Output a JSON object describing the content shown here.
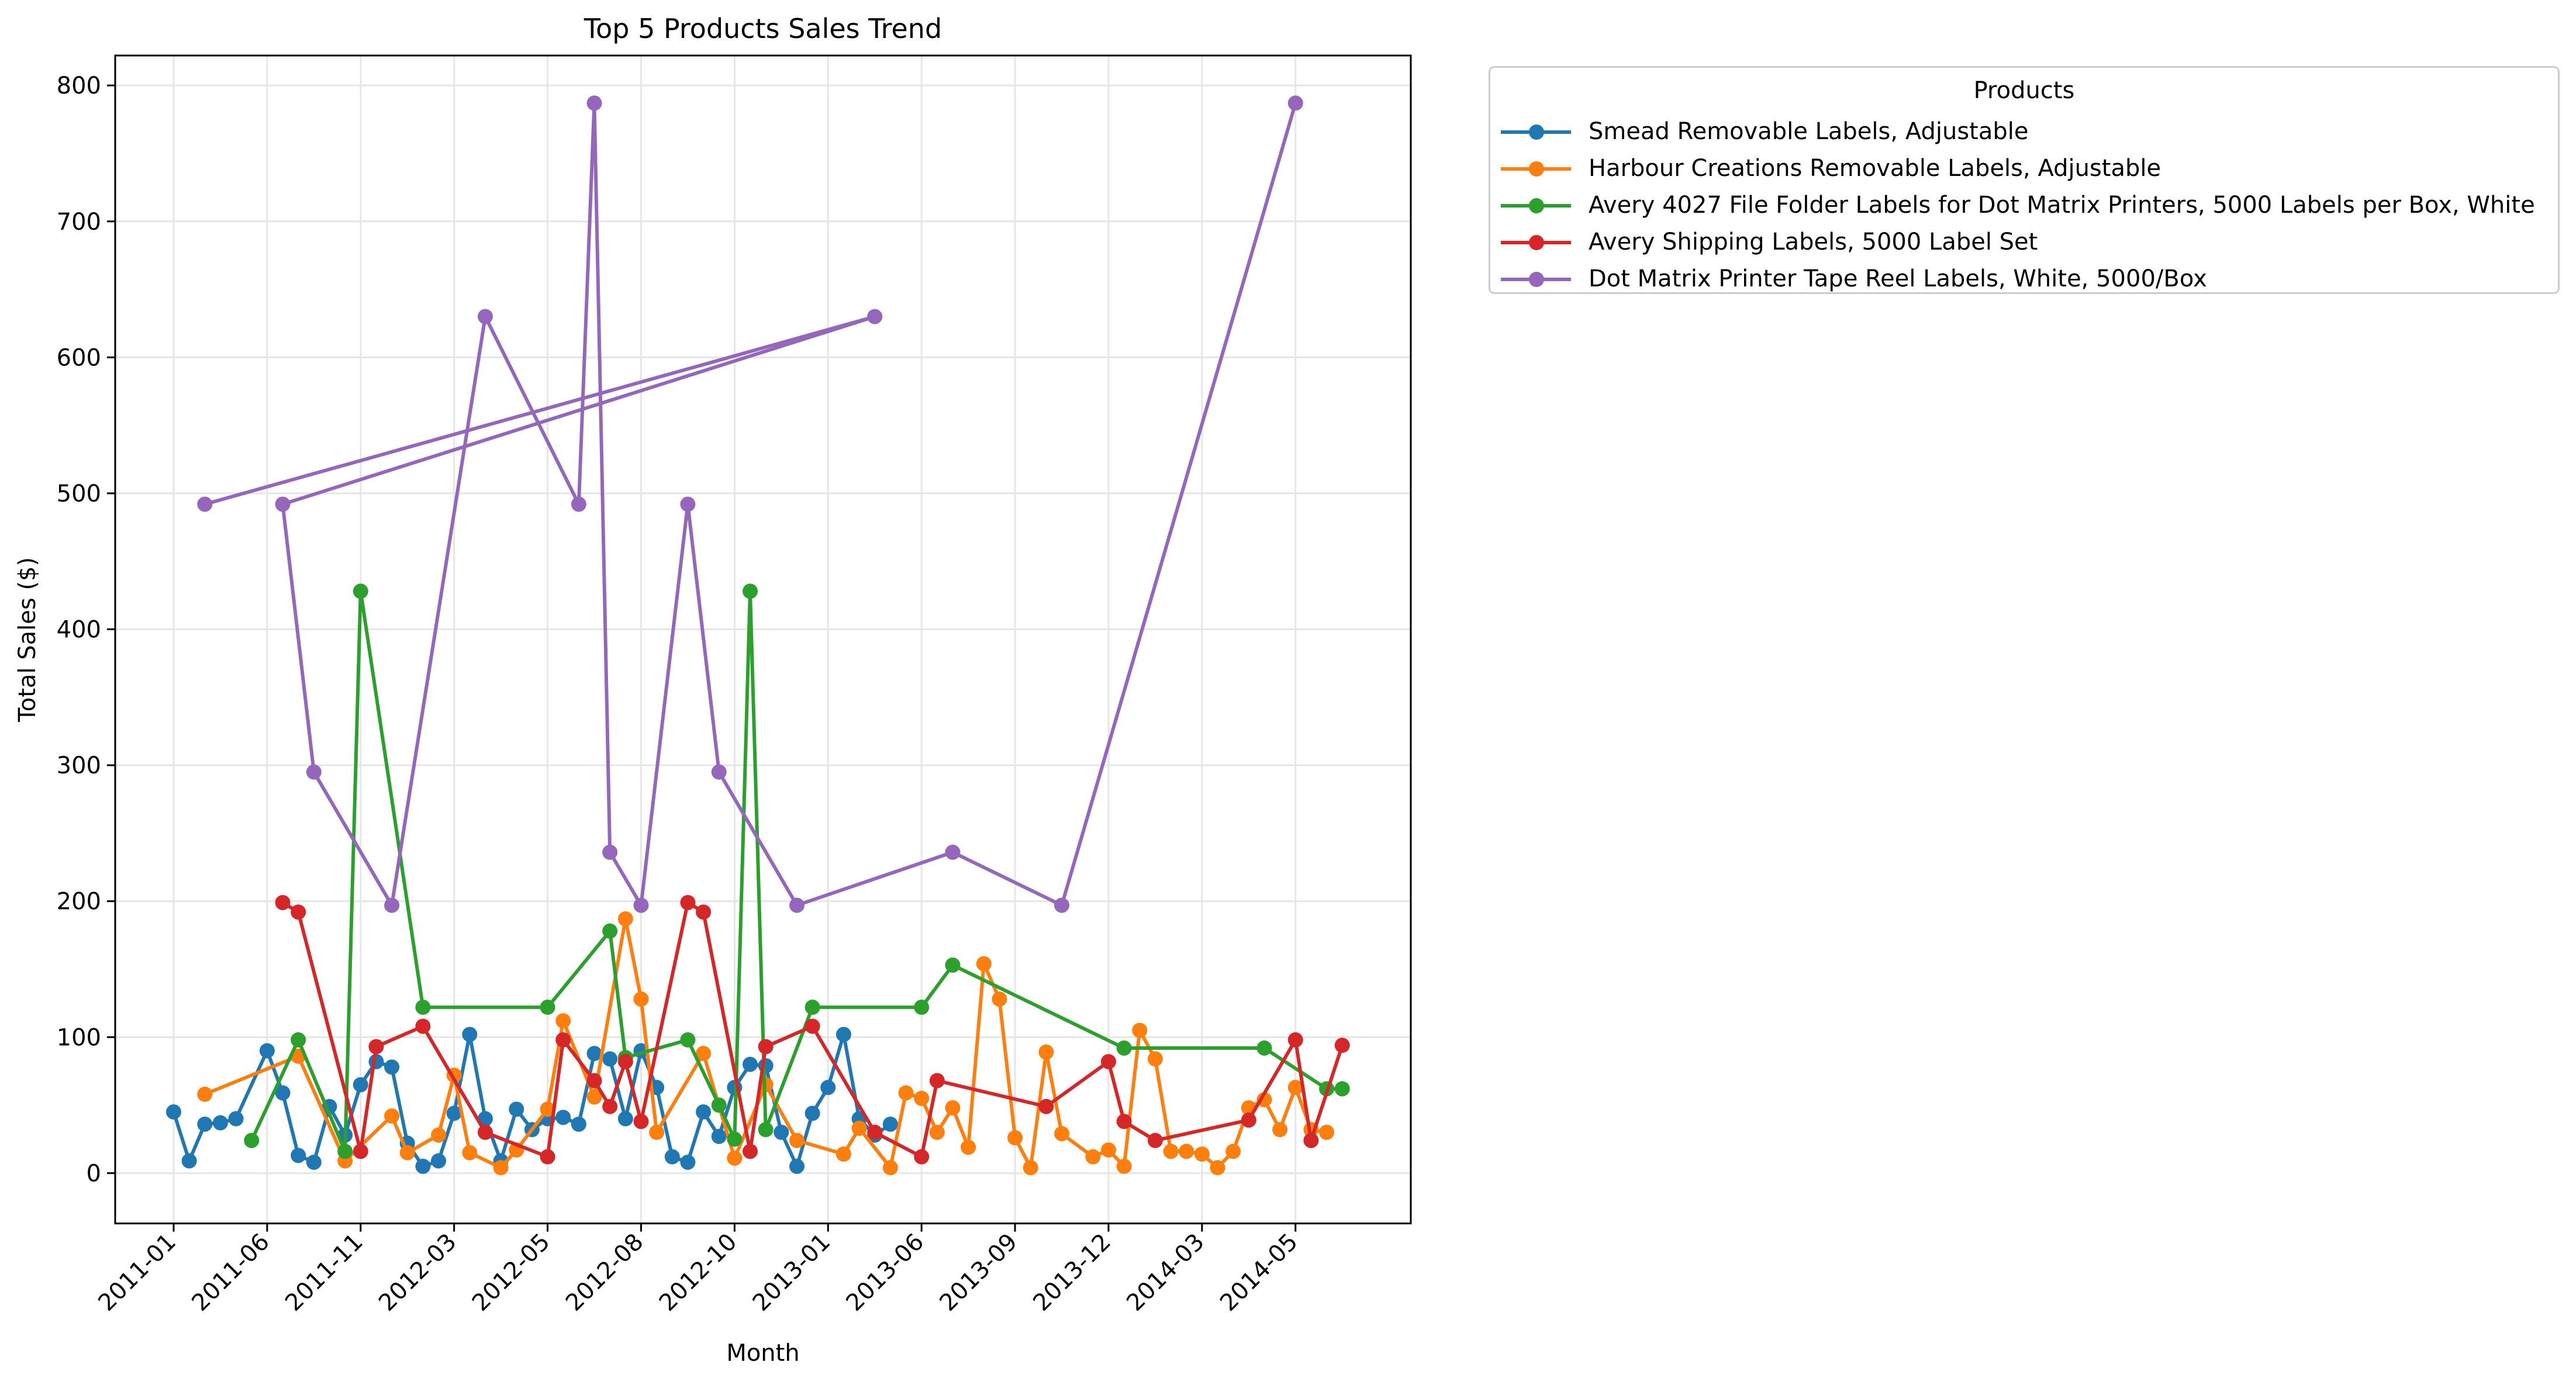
{
  "chart_data": {
    "type": "line",
    "title": "Top 5 Products Sales Trend",
    "xlabel": "Month",
    "ylabel": "Total Sales ($)",
    "ylim": [
      -37,
      822
    ],
    "yticks": [
      0,
      100,
      200,
      300,
      400,
      500,
      600,
      700,
      800
    ],
    "x_category_count": 83,
    "x_tick_labels": [
      {
        "index": 0,
        "label": "2011-01"
      },
      {
        "index": 6,
        "label": "2011-06"
      },
      {
        "index": 12,
        "label": "2011-11"
      },
      {
        "index": 18,
        "label": "2012-03"
      },
      {
        "index": 24,
        "label": "2012-05"
      },
      {
        "index": 30,
        "label": "2012-08"
      },
      {
        "index": 36,
        "label": "2012-10"
      },
      {
        "index": 42,
        "label": "2013-01"
      },
      {
        "index": 48,
        "label": "2013-06"
      },
      {
        "index": 54,
        "label": "2013-09"
      },
      {
        "index": 60,
        "label": "2013-12"
      },
      {
        "index": 66,
        "label": "2014-03"
      },
      {
        "index": 72,
        "label": "2014-05"
      }
    ],
    "grid": true,
    "legend": {
      "title": "Products",
      "placement": "outside-top-right"
    },
    "series": [
      {
        "name": "Smead Removable Labels, Adjustable",
        "color": "#1f77b4",
        "x": [
          0,
          1,
          2,
          3,
          4,
          6,
          7,
          8,
          9,
          10,
          11,
          12,
          13,
          14,
          15,
          16,
          17,
          18,
          19,
          20,
          21,
          22,
          23,
          24,
          25,
          26,
          27,
          28,
          29,
          30,
          31,
          32,
          33,
          34,
          35,
          36,
          37,
          38,
          39,
          40,
          41,
          42,
          43,
          44,
          45,
          46
        ],
        "y": [
          45,
          9,
          36,
          37,
          40,
          90,
          59,
          13,
          8,
          49,
          28,
          65,
          82,
          78,
          22,
          5,
          9,
          44,
          102,
          40,
          9,
          47,
          32,
          40,
          41,
          36,
          88,
          84,
          40,
          90,
          63,
          12,
          8,
          45,
          27,
          63,
          80,
          79,
          30,
          5,
          44,
          63,
          102,
          40,
          28,
          36
        ]
      },
      {
        "name": "Harbour Creations Removable Labels, Adjustable",
        "color": "#ff7f0e",
        "x": [
          2,
          8,
          11,
          14,
          15,
          17,
          18,
          19,
          21,
          22,
          24,
          25,
          27,
          29,
          30,
          31,
          34,
          36,
          38,
          40,
          43,
          44,
          46,
          47,
          48,
          49,
          50,
          51,
          52,
          53,
          54,
          55,
          56,
          57,
          59,
          60,
          61,
          62,
          63,
          64,
          65,
          66,
          67,
          68,
          69,
          70,
          71,
          72,
          73,
          74
        ],
        "y": [
          58,
          86,
          9,
          42,
          15,
          28,
          72,
          15,
          4,
          17,
          47,
          112,
          56,
          187,
          128,
          30,
          88,
          11,
          65,
          24,
          14,
          33,
          4,
          59,
          55,
          30,
          48,
          19,
          154,
          128,
          26,
          4,
          89,
          29,
          12,
          17,
          5,
          105,
          84,
          16,
          16,
          14,
          4,
          16,
          48,
          54,
          32,
          63,
          32,
          30
        ],
        "breaks": [
          [
            40,
            -1
          ],
          [
            45,
            -1
          ]
        ]
      },
      {
        "name": "Avery 4027 File Folder Labels for Dot Matrix Printers, 5000 Labels per Box, White",
        "color": "#2ca02c",
        "x": [
          5,
          8,
          11,
          12,
          16,
          24,
          28,
          29,
          33,
          35,
          36,
          37,
          38,
          41,
          48,
          50,
          61,
          70,
          74,
          75
        ],
        "y": [
          24,
          98,
          16,
          428,
          122,
          122,
          178,
          85,
          98,
          50,
          25,
          428,
          32,
          122,
          122,
          153,
          92,
          92,
          62,
          62
        ]
      },
      {
        "name": "Avery Shipping Labels, 5000 Label Set",
        "color": "#d62728",
        "x": [
          7,
          8,
          12,
          13,
          16,
          20,
          24,
          25,
          27,
          28,
          29,
          30,
          33,
          34,
          37,
          38,
          41,
          45,
          48,
          49,
          56,
          60,
          61,
          63,
          69,
          72,
          73,
          75
        ],
        "y": [
          199,
          192,
          16,
          93,
          108,
          30,
          12,
          98,
          68,
          49,
          82,
          38,
          199,
          192,
          16,
          93,
          108,
          30,
          12,
          68,
          49,
          82,
          38,
          24,
          39,
          98,
          24,
          94
        ]
      },
      {
        "name": "Dot Matrix Printer Tape Reel Labels, White, 5000/Box",
        "color": "#9467bd",
        "x": [
          2,
          7,
          9,
          14,
          20,
          26,
          27,
          28,
          30,
          33,
          35,
          40,
          45,
          50,
          57,
          72
        ],
        "y": [
          492,
          492,
          295,
          197,
          630,
          492,
          787,
          236,
          197,
          492,
          295,
          197,
          630,
          236,
          197,
          787
        ],
        "order": [
          0,
          12,
          1,
          2,
          3,
          4,
          5,
          6,
          7,
          8,
          9,
          10,
          11,
          13,
          14,
          15
        ]
      }
    ]
  }
}
